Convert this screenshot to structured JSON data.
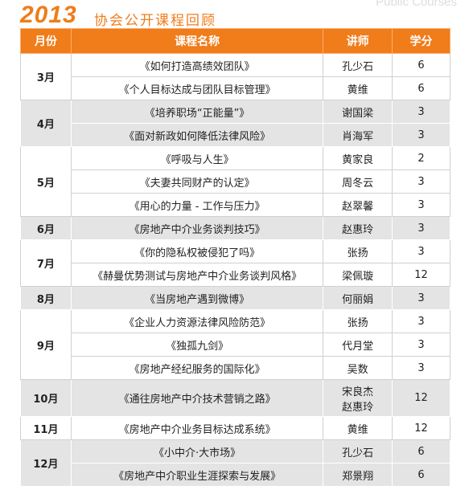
{
  "header": {
    "year": "2013",
    "title": "协会公开课程回顾",
    "subtitle": "Public Courses"
  },
  "table": {
    "columns": [
      "月份",
      "课程名称",
      "讲师",
      "学分"
    ],
    "groups": [
      {
        "month": "3月",
        "courses": [
          {
            "title": "《如何打造高绩效团队》",
            "teachers": [
              "孔少石"
            ],
            "credit": 6
          },
          {
            "title": "《个人目标达成与团队目标管理》",
            "teachers": [
              "黄维"
            ],
            "credit": 6
          }
        ]
      },
      {
        "month": "4月",
        "courses": [
          {
            "title": "《培养职场“正能量”》",
            "teachers": [
              "谢国梁"
            ],
            "credit": 3
          },
          {
            "title": "《面对新政如何降低法律风险》",
            "teachers": [
              "肖海军"
            ],
            "credit": 3
          }
        ]
      },
      {
        "month": "5月",
        "courses": [
          {
            "title": "《呼吸与人生》",
            "teachers": [
              "黄家良"
            ],
            "credit": 2
          },
          {
            "title": "《夫妻共同财产的认定》",
            "teachers": [
              "周冬云"
            ],
            "credit": 3
          },
          {
            "title": "《用心的力量 - 工作与压力》",
            "teachers": [
              "赵翠馨"
            ],
            "credit": 3
          }
        ]
      },
      {
        "month": "6月",
        "courses": [
          {
            "title": "《房地产中介业务谈判技巧》",
            "teachers": [
              "赵惠玲"
            ],
            "credit": 3
          }
        ]
      },
      {
        "month": "7月",
        "courses": [
          {
            "title": "《你的隐私权被侵犯了吗》",
            "teachers": [
              "张扬"
            ],
            "credit": 3
          },
          {
            "title": "《赫曼优势测试与房地产中介业务谈判风格》",
            "teachers": [
              "梁佩璇"
            ],
            "credit": 12
          }
        ]
      },
      {
        "month": "8月",
        "courses": [
          {
            "title": "《当房地产遇到微博》",
            "teachers": [
              "何丽娟"
            ],
            "credit": 3
          }
        ]
      },
      {
        "month": "9月",
        "courses": [
          {
            "title": "《企业人力资源法律风险防范》",
            "teachers": [
              "张扬"
            ],
            "credit": 3
          },
          {
            "title": "《独孤九剑》",
            "teachers": [
              "代月堂"
            ],
            "credit": 3
          },
          {
            "title": "《房地产经纪服务的国际化》",
            "teachers": [
              "吴数"
            ],
            "credit": 3
          }
        ]
      },
      {
        "month": "10月",
        "courses": [
          {
            "title": "《通往房地产中介技术营销之路》",
            "teachers": [
              "宋良杰",
              "赵惠玲"
            ],
            "credit": 12
          }
        ]
      },
      {
        "month": "11月",
        "courses": [
          {
            "title": "《房地产中介业务目标达成系统》",
            "teachers": [
              "黄维"
            ],
            "credit": 12
          }
        ]
      },
      {
        "month": "12月",
        "courses": [
          {
            "title": "《小中介·大市场》",
            "teachers": [
              "孔少石"
            ],
            "credit": 6
          },
          {
            "title": "《房地产中介职业生涯探索与发展》",
            "teachers": [
              "郑景翔"
            ],
            "credit": 6
          }
        ]
      }
    ]
  }
}
